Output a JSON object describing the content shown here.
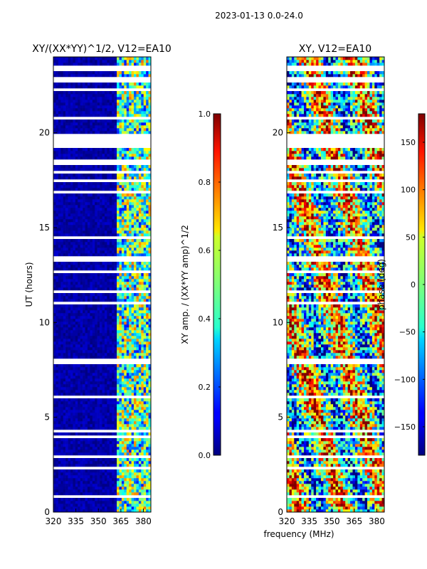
{
  "chart_data": [
    {
      "type": "heatmap",
      "title": "XY/(XX*YY)^1/2, V12=EA10",
      "xlabel": "",
      "ylabel": "UT (hours)",
      "xlim": [
        320,
        385
      ],
      "ylim": [
        0,
        24
      ],
      "xticks": [
        320,
        335,
        350,
        365,
        380
      ],
      "yticks": [
        0,
        5,
        10,
        15,
        20
      ],
      "colorbar": {
        "label": "XY amp. / (XX*YY amp)^1/2",
        "range": [
          0.0,
          1.0
        ],
        "ticks": [
          "0.0",
          "0.2",
          "0.4",
          "0.6",
          "0.8",
          "1.0"
        ]
      },
      "colormap": "jet",
      "description_values": {
        "low_band_mean": 0.05,
        "high_band_mean": 0.45,
        "high_band_start_mhz": 362
      }
    },
    {
      "type": "heatmap",
      "title": "XY, V12=EA10",
      "xlabel": "frequency (MHz)",
      "ylabel": "",
      "xlim": [
        320,
        385
      ],
      "ylim": [
        0,
        24
      ],
      "xticks": [
        320,
        335,
        350,
        365,
        380
      ],
      "yticks": [
        0,
        5,
        10,
        15,
        20
      ],
      "colorbar": {
        "label": "phase (deg)",
        "range": [
          -180,
          180
        ],
        "ticks": [
          "−150",
          "−100",
          "−50",
          "0",
          "50",
          "100",
          "150"
        ]
      },
      "colormap": "jet"
    }
  ],
  "suptitle": "2023-01-13 0.0-24.0",
  "gap_bands_ut": [
    [
      18.35,
      18.55
    ],
    [
      19.25,
      20.0
    ],
    [
      13.25,
      13.4
    ],
    [
      7.75,
      7.85
    ],
    [
      6.05,
      6.2
    ],
    [
      2.9,
      3.0
    ],
    [
      0.75,
      0.85
    ]
  ]
}
